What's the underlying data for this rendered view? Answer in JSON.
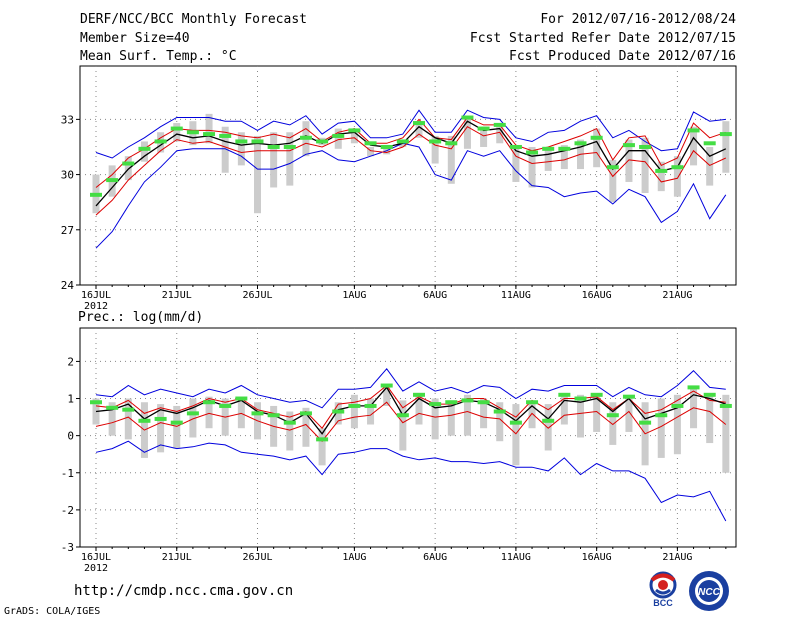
{
  "header": {
    "title": "DERF/NCC/BCC Monthly Forecast",
    "member_size": "Member Size=40",
    "variable": "Mean Surf. Temp.: °C",
    "period": "For 2012/07/16-2012/08/24",
    "fcst_started": "Fcst Started Refer Date 2012/07/15",
    "fcst_produced": "Fcst Produced Date 2012/07/16"
  },
  "footer": {
    "url": "http://cmdp.ncc.cma.gov.cn",
    "grads": "GrADS: COLA/IGES",
    "logo_bcc": "BCC",
    "logo_ncc": "NCC"
  },
  "colors": {
    "envelope": "#0000dd",
    "mean": "#000000",
    "spread": "#dd0000",
    "observed": "#44dd44",
    "box": "#cccccc",
    "grid": "#888888"
  },
  "chart_data": [
    {
      "type": "line",
      "title": "Mean Surf. Temp.: °C",
      "x_tick_labels": [
        "16JUL",
        "21JUL",
        "26JUL",
        "1AUG",
        "6AUG",
        "11AUG",
        "16AUG",
        "21AUG"
      ],
      "x_tick_days": [
        1,
        6,
        11,
        17,
        22,
        27,
        32,
        37
      ],
      "x_year_label": "2012",
      "y_ticks": [
        24,
        27,
        30,
        33
      ],
      "ylim": [
        24,
        35.9
      ],
      "grid": true,
      "days": [
        1,
        2,
        3,
        4,
        5,
        6,
        7,
        8,
        9,
        10,
        11,
        12,
        13,
        14,
        15,
        16,
        17,
        18,
        19,
        20,
        21,
        22,
        23,
        24,
        25,
        26,
        27,
        28,
        29,
        30,
        31,
        32,
        33,
        34,
        35,
        36,
        37,
        38,
        39,
        40
      ],
      "series": [
        {
          "name": "max",
          "values": [
            31.2,
            30.9,
            31.5,
            32.0,
            32.6,
            33.1,
            33.1,
            33.1,
            32.9,
            32.9,
            32.4,
            32.9,
            32.7,
            33.2,
            32.2,
            32.8,
            32.9,
            32.0,
            32.0,
            32.2,
            33.5,
            32.3,
            32.3,
            33.5,
            33.1,
            33.0,
            32.0,
            31.8,
            32.3,
            32.4,
            32.9,
            33.2,
            32.0,
            32.4,
            31.8,
            31.3,
            31.4,
            33.4,
            32.9,
            33.0
          ]
        },
        {
          "name": "upper",
          "values": [
            29.3,
            30.0,
            30.9,
            31.4,
            32.0,
            32.5,
            32.4,
            32.4,
            32.3,
            32.1,
            32.0,
            32.2,
            32.0,
            32.5,
            31.8,
            32.3,
            32.5,
            31.7,
            31.7,
            32.0,
            33.0,
            32.0,
            31.9,
            33.1,
            32.7,
            32.7,
            31.6,
            31.3,
            31.5,
            31.8,
            32.1,
            32.5,
            30.8,
            32.0,
            32.1,
            30.5,
            30.9,
            32.8,
            32.0,
            32.3
          ]
        },
        {
          "name": "mean",
          "values": [
            28.3,
            29.3,
            30.3,
            31.0,
            31.6,
            32.2,
            32.0,
            32.1,
            31.8,
            31.6,
            31.7,
            31.6,
            31.7,
            32.1,
            31.7,
            32.2,
            32.3,
            31.6,
            31.5,
            31.7,
            32.6,
            32.0,
            31.7,
            32.9,
            32.4,
            32.5,
            31.3,
            31.0,
            31.1,
            31.3,
            31.5,
            31.8,
            30.3,
            31.3,
            31.3,
            30.2,
            30.4,
            32.0,
            31.0,
            31.4
          ]
        },
        {
          "name": "lower",
          "values": [
            27.8,
            28.6,
            29.7,
            30.5,
            31.3,
            31.9,
            31.7,
            31.8,
            31.5,
            31.2,
            31.3,
            31.3,
            31.3,
            31.7,
            31.5,
            31.9,
            32.0,
            31.3,
            31.2,
            31.5,
            32.2,
            31.6,
            31.4,
            32.6,
            32.1,
            32.3,
            31.0,
            30.6,
            30.7,
            30.8,
            31.1,
            31.2,
            29.9,
            30.8,
            30.7,
            29.6,
            29.8,
            31.3,
            30.5,
            30.9
          ]
        },
        {
          "name": "min",
          "values": [
            26.0,
            26.9,
            28.3,
            29.6,
            30.4,
            31.3,
            31.4,
            31.4,
            31.4,
            31.0,
            30.3,
            30.3,
            30.6,
            31.1,
            31.3,
            30.8,
            30.7,
            31.0,
            31.3,
            31.7,
            31.5,
            30.0,
            29.7,
            31.3,
            31.0,
            31.3,
            30.2,
            29.4,
            29.3,
            28.8,
            29.0,
            29.1,
            28.4,
            29.2,
            28.8,
            27.4,
            28.0,
            29.5,
            27.6,
            28.9
          ]
        },
        {
          "name": "observed",
          "values": [
            28.9,
            29.7,
            30.6,
            31.4,
            31.8,
            32.5,
            32.3,
            32.2,
            32.1,
            31.8,
            31.8,
            31.5,
            31.5,
            32.0,
            31.8,
            32.1,
            32.4,
            31.7,
            31.5,
            31.8,
            32.8,
            31.8,
            31.7,
            33.1,
            32.5,
            32.7,
            31.5,
            31.2,
            31.4,
            31.4,
            31.7,
            32.0,
            30.4,
            31.6,
            31.5,
            30.2,
            30.4,
            32.4,
            31.7,
            32.2
          ]
        },
        {
          "name": "box_high",
          "values": [
            30.0,
            30.5,
            31.0,
            31.8,
            32.3,
            32.8,
            32.9,
            33.3,
            32.6,
            32.3,
            32.1,
            32.3,
            32.3,
            32.9,
            32.0,
            32.5,
            32.5,
            31.5,
            31.6,
            31.8,
            32.9,
            32.1,
            32.1,
            33.0,
            32.6,
            32.6,
            31.6,
            31.5,
            31.5,
            31.6,
            31.9,
            32.5,
            30.8,
            31.9,
            32.0,
            30.7,
            31.0,
            32.6,
            31.5,
            32.9
          ]
        },
        {
          "name": "box_low",
          "values": [
            27.9,
            28.8,
            29.7,
            30.7,
            31.2,
            31.8,
            31.6,
            31.7,
            30.1,
            30.5,
            27.9,
            29.3,
            29.4,
            31.0,
            31.6,
            31.4,
            31.7,
            31.0,
            31.1,
            31.5,
            32.0,
            30.6,
            29.5,
            31.4,
            31.5,
            31.7,
            29.6,
            29.3,
            30.2,
            30.3,
            30.3,
            30.4,
            28.5,
            29.6,
            29.0,
            29.1,
            28.8,
            30.5,
            29.4,
            30.1
          ]
        }
      ]
    },
    {
      "type": "line",
      "title": "Prec.: log(mm/d)",
      "x_tick_labels": [
        "16JUL",
        "21JUL",
        "26JUL",
        "1AUG",
        "6AUG",
        "11AUG",
        "16AUG",
        "21AUG"
      ],
      "x_tick_days": [
        1,
        6,
        11,
        17,
        22,
        27,
        32,
        37
      ],
      "x_year_label": "2012",
      "y_ticks": [
        -3,
        -2,
        -1,
        0,
        1,
        2
      ],
      "ylim": [
        -3,
        2.9
      ],
      "grid": true,
      "days": [
        1,
        2,
        3,
        4,
        5,
        6,
        7,
        8,
        9,
        10,
        11,
        12,
        13,
        14,
        15,
        16,
        17,
        18,
        19,
        20,
        21,
        22,
        23,
        24,
        25,
        26,
        27,
        28,
        29,
        30,
        31,
        32,
        33,
        34,
        35,
        36,
        37,
        38,
        39,
        40
      ],
      "series": [
        {
          "name": "max",
          "values": [
            1.1,
            1.05,
            1.35,
            1.1,
            1.25,
            1.15,
            1.05,
            1.25,
            1.15,
            1.35,
            1.1,
            1.0,
            0.9,
            0.95,
            0.75,
            1.25,
            1.25,
            1.3,
            1.8,
            1.2,
            1.45,
            1.2,
            1.3,
            1.15,
            1.35,
            1.3,
            1.0,
            1.25,
            1.2,
            1.35,
            1.35,
            1.35,
            1.05,
            1.3,
            1.1,
            1.05,
            1.35,
            1.75,
            1.3,
            1.25
          ]
        },
        {
          "name": "upper",
          "values": [
            0.8,
            0.75,
            0.95,
            0.6,
            0.75,
            0.65,
            0.8,
            1.0,
            0.9,
            1.0,
            0.7,
            0.6,
            0.5,
            0.65,
            0.2,
            0.85,
            0.9,
            1.0,
            1.35,
            0.75,
            1.05,
            0.85,
            0.85,
            1.0,
            1.0,
            0.75,
            0.5,
            0.95,
            0.7,
            1.0,
            1.0,
            1.05,
            0.7,
            1.0,
            0.6,
            0.7,
            0.95,
            1.2,
            0.95,
            0.9
          ]
        },
        {
          "name": "mean",
          "values": [
            0.65,
            0.7,
            0.85,
            0.45,
            0.7,
            0.6,
            0.75,
            0.95,
            0.8,
            0.95,
            0.65,
            0.55,
            0.35,
            0.6,
            0.05,
            0.7,
            0.8,
            0.8,
            1.3,
            0.55,
            1.0,
            0.75,
            0.8,
            0.95,
            0.9,
            0.7,
            0.4,
            0.8,
            0.45,
            0.95,
            0.9,
            1.0,
            0.65,
            1.0,
            0.45,
            0.6,
            0.75,
            1.1,
            1.0,
            0.85
          ]
        },
        {
          "name": "lower",
          "values": [
            0.25,
            0.35,
            0.5,
            0.15,
            0.35,
            0.25,
            0.45,
            0.6,
            0.5,
            0.6,
            0.4,
            0.25,
            0.15,
            0.3,
            -0.15,
            0.4,
            0.5,
            0.55,
            0.9,
            0.35,
            0.6,
            0.5,
            0.55,
            0.65,
            0.5,
            0.45,
            0.05,
            0.6,
            0.2,
            0.55,
            0.6,
            0.65,
            0.3,
            0.65,
            0.05,
            0.25,
            0.5,
            0.75,
            0.65,
            0.3
          ]
        },
        {
          "name": "min",
          "values": [
            -0.45,
            -0.35,
            -0.15,
            -0.45,
            -0.25,
            -0.35,
            -0.3,
            -0.2,
            -0.25,
            -0.45,
            -0.5,
            -0.55,
            -0.65,
            -0.55,
            -1.05,
            -0.5,
            -0.45,
            -0.35,
            -0.35,
            -0.55,
            -0.65,
            -0.6,
            -0.7,
            -0.7,
            -0.75,
            -0.7,
            -0.85,
            -0.85,
            -0.95,
            -0.6,
            -1.05,
            -0.75,
            -0.95,
            -0.95,
            -1.15,
            -1.8,
            -1.6,
            -1.65,
            -1.5,
            -2.3
          ]
        },
        {
          "name": "observed",
          "values": [
            0.9,
            0.75,
            0.7,
            0.4,
            0.45,
            0.35,
            0.6,
            0.9,
            0.8,
            1.0,
            0.6,
            0.55,
            0.35,
            0.6,
            -0.1,
            0.65,
            0.8,
            0.8,
            1.35,
            0.55,
            1.1,
            0.85,
            0.9,
            0.95,
            0.9,
            0.65,
            0.35,
            0.9,
            0.4,
            1.1,
            1.0,
            1.1,
            0.55,
            1.05,
            0.35,
            0.55,
            0.8,
            1.3,
            1.1,
            0.8
          ]
        },
        {
          "name": "box_high",
          "values": [
            1.0,
            0.9,
            1.0,
            0.9,
            0.85,
            0.8,
            1.0,
            1.05,
            1.0,
            1.0,
            0.9,
            0.8,
            0.65,
            0.75,
            0.2,
            0.9,
            1.1,
            1.0,
            1.4,
            0.95,
            1.15,
            1.0,
            0.95,
            1.1,
            1.0,
            0.9,
            0.85,
            0.95,
            0.85,
            1.15,
            1.1,
            1.1,
            0.9,
            1.05,
            0.9,
            1.0,
            1.1,
            1.3,
            1.1,
            1.1
          ]
        },
        {
          "name": "box_low",
          "values": [
            0.3,
            0.0,
            -0.1,
            -0.6,
            -0.45,
            -0.35,
            -0.05,
            0.2,
            0.0,
            0.2,
            -0.1,
            -0.3,
            -0.4,
            -0.3,
            -0.8,
            0.3,
            0.2,
            0.3,
            0.8,
            -0.4,
            0.3,
            -0.1,
            0.0,
            0.0,
            0.2,
            -0.15,
            -0.8,
            0.2,
            -0.4,
            0.3,
            -0.05,
            0.1,
            -0.25,
            0.1,
            -0.8,
            -0.6,
            -0.5,
            0.2,
            -0.2,
            -1.0
          ]
        }
      ]
    }
  ]
}
